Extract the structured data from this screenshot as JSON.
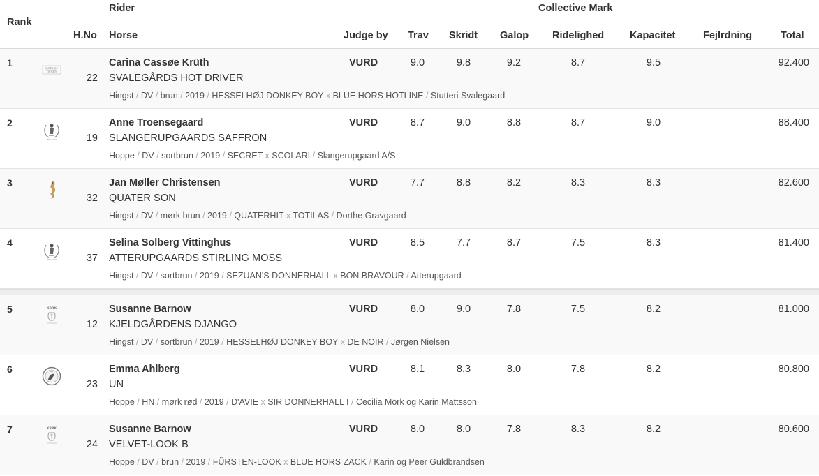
{
  "header": {
    "rank": "Rank",
    "rider": "Rider",
    "collective_mark": "Collective Mark",
    "hno": "H.No",
    "horse": "Horse",
    "judge_by": "Judge by",
    "trav": "Trav",
    "skridt": "Skridt",
    "galop": "Galop",
    "ridelighed": "Ridelighed",
    "kapacitet": "Kapacitet",
    "fejlrdning": "Fejlrdning",
    "total": "Total"
  },
  "rows": [
    {
      "rank": "1",
      "logo": "danish-derby-logo",
      "hno": "22",
      "rider": "Carina Cassøe Krüth",
      "horse": "SVALEGÅRDS HOT DRIVER",
      "gender": "Hingst",
      "breed": "DV",
      "color": "brun",
      "year": "2019",
      "sire": "HESSELHØJ DONKEY BOY",
      "dam_sire": "BLUE HORS HOTLINE",
      "breeder": "Stutteri Svalegaard",
      "judge": "VURD",
      "trav": "9.0",
      "skridt": "9.8",
      "galop": "9.2",
      "ridelighed": "8.7",
      "kapacitet": "9.5",
      "fejlrdning": "",
      "total": "92.400"
    },
    {
      "rank": "2",
      "logo": "rider-emblem-logo",
      "hno": "19",
      "rider": "Anne Troensegaard",
      "horse": "SLANGERUPGAARDS SAFFRON",
      "gender": "Hoppe",
      "breed": "DV",
      "color": "sortbrun",
      "year": "2019",
      "sire": "SECRET",
      "dam_sire": "SCOLARI",
      "breeder": "Slangerupgaard A/S",
      "judge": "VURD",
      "trav": "8.7",
      "skridt": "9.0",
      "galop": "8.8",
      "ridelighed": "8.7",
      "kapacitet": "9.0",
      "fejlrdning": "",
      "total": "88.400"
    },
    {
      "rank": "3",
      "logo": "seahorse-logo",
      "hno": "32",
      "rider": "Jan Møller Christensen",
      "horse": "QUATER SON",
      "gender": "Hingst",
      "breed": "DV",
      "color": "mørk brun",
      "year": "2019",
      "sire": "QUATERHIT",
      "dam_sire": "TOTILAS",
      "breeder": "Dorthe Gravgaard",
      "judge": "VURD",
      "trav": "7.7",
      "skridt": "8.8",
      "galop": "8.2",
      "ridelighed": "8.3",
      "kapacitet": "8.3",
      "fejlrdning": "",
      "total": "82.600"
    },
    {
      "rank": "4",
      "logo": "rider-emblem-logo",
      "hno": "37",
      "rider": "Selina Solberg Vittinghus",
      "horse": "ATTERUPGAARDS STIRLING MOSS",
      "gender": "Hingst",
      "breed": "DV",
      "color": "sortbrun",
      "year": "2019",
      "sire": "SEZUAN'S DONNERHALL",
      "dam_sire": "BON BRAVOUR",
      "breeder": "Atterupgaard",
      "judge": "VURD",
      "trav": "8.5",
      "skridt": "7.7",
      "galop": "8.7",
      "ridelighed": "7.5",
      "kapacitet": "8.3",
      "fejlrdning": "",
      "total": "81.400"
    },
    {
      "rank": "5",
      "logo": "club-crest-logo",
      "hno": "12",
      "rider": "Susanne Barnow",
      "horse": "KJELDGÅRDENS DJANGO",
      "gender": "Hingst",
      "breed": "DV",
      "color": "sortbrun",
      "year": "2019",
      "sire": "HESSELHØJ DONKEY BOY",
      "dam_sire": "DE NOIR",
      "breeder": "Jørgen Nielsen",
      "judge": "VURD",
      "trav": "8.0",
      "skridt": "9.0",
      "galop": "7.8",
      "ridelighed": "7.5",
      "kapacitet": "8.2",
      "fejlrdning": "",
      "total": "81.000"
    },
    {
      "rank": "6",
      "logo": "round-seal-logo",
      "hno": "23",
      "rider": "Emma Ahlberg",
      "horse": "UN",
      "gender": "Hoppe",
      "breed": "HN",
      "color": "mørk rød",
      "year": "2019",
      "sire": "D'AVIE",
      "dam_sire": "SIR DONNERHALL I",
      "breeder": "Cecilia Mörk og Karin Mattsson",
      "judge": "VURD",
      "trav": "8.1",
      "skridt": "8.3",
      "galop": "8.0",
      "ridelighed": "7.8",
      "kapacitet": "8.2",
      "fejlrdning": "",
      "total": "80.800"
    },
    {
      "rank": "7",
      "logo": "club-crest-logo",
      "hno": "24",
      "rider": "Susanne Barnow",
      "horse": "VELVET-LOOK B",
      "gender": "Hoppe",
      "breed": "DV",
      "color": "brun",
      "year": "2019",
      "sire": "FÜRSTEN-LOOK",
      "dam_sire": "BLUE HORS ZACK",
      "breeder": "Karin og Peer Guldbrandsen",
      "judge": "VURD",
      "trav": "8.0",
      "skridt": "8.0",
      "galop": "7.8",
      "ridelighed": "8.3",
      "kapacitet": "8.2",
      "fejlrdning": "",
      "total": "80.600"
    }
  ]
}
